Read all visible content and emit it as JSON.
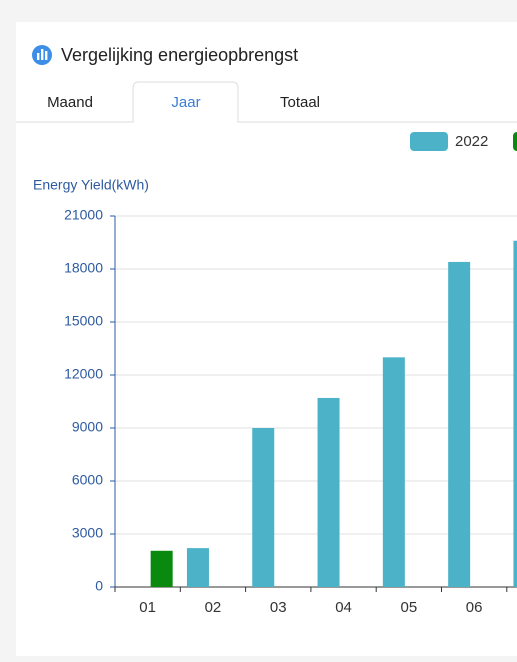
{
  "header": {
    "title": "Vergelijking energieopbrengst"
  },
  "tabs": [
    "Maand",
    "Jaar",
    "Totaal"
  ],
  "chart_data": {
    "type": "bar",
    "y_label": "Energy Yield(kWh)",
    "categories": [
      "01",
      "02",
      "03",
      "04",
      "05",
      "06",
      null
    ],
    "series": [
      {
        "name": "2022",
        "color": "#4bb2c7",
        "values": [
          null,
          2200,
          9000,
          10700,
          13000,
          18400,
          19600
        ]
      },
      {
        "color": "#098a0f",
        "values": [
          2050,
          null,
          null,
          null,
          null,
          null,
          null
        ]
      }
    ],
    "ylim": [
      0,
      21000
    ],
    "yticks": [
      0,
      3000,
      6000,
      9000,
      12000,
      15000,
      18000,
      21000
    ],
    "grid": true
  }
}
